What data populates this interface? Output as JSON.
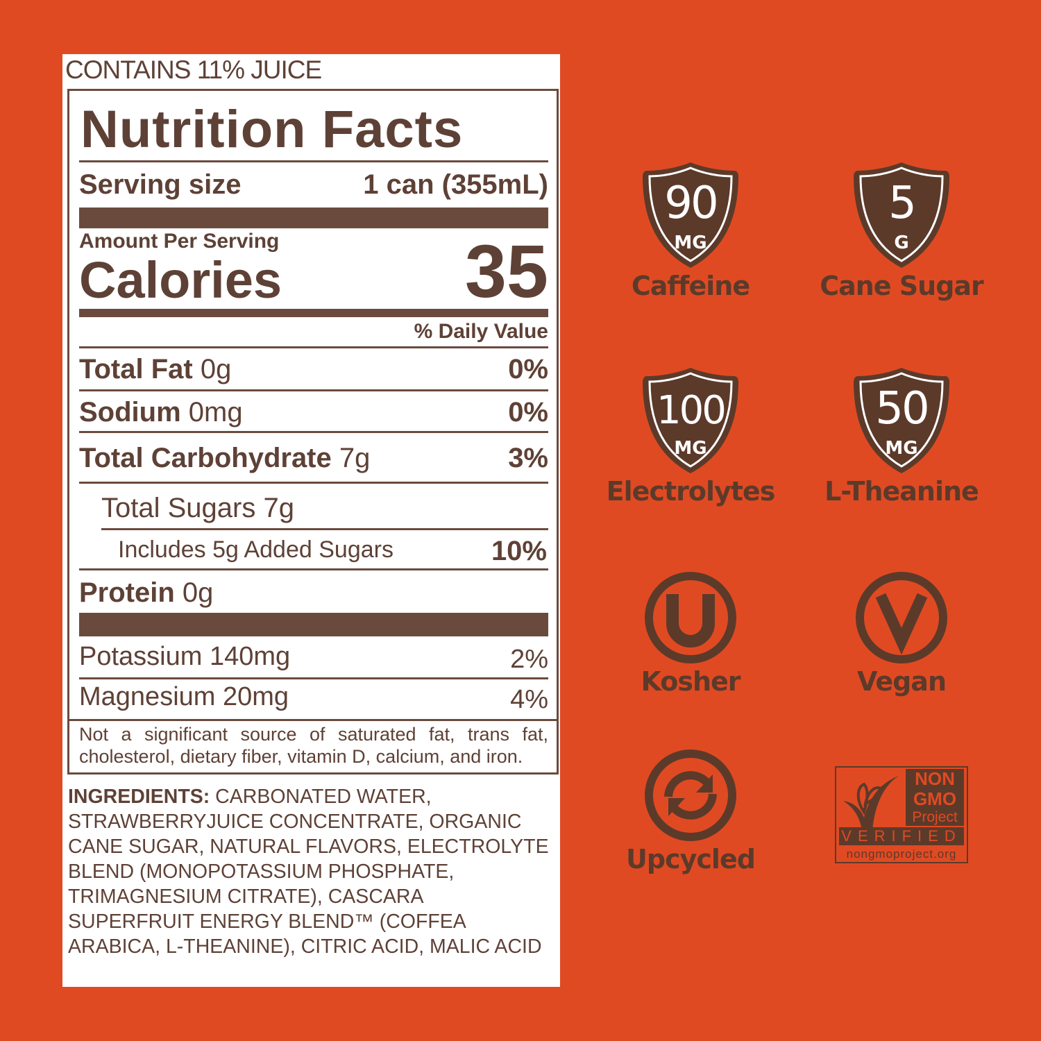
{
  "label": {
    "juice": "CONTAINS 11% JUICE",
    "title": "Nutrition Facts",
    "serving_label": "Serving size",
    "serving_value": "1 can (355mL)",
    "amount_per_serving": "Amount Per Serving",
    "calories_label": "Calories",
    "calories_value": "35",
    "daily_value_header": "% Daily Value",
    "rows": [
      {
        "name": "Total Fat",
        "amount": "0g",
        "dv": "0%"
      },
      {
        "name": "Sodium",
        "amount": "0mg",
        "dv": "0%"
      },
      {
        "name": "Total Carbohydrate",
        "amount": "7g",
        "dv": "3%"
      },
      {
        "name": "Total Sugars 7g",
        "amount": "",
        "dv": ""
      },
      {
        "name": "Includes 5g Added Sugars",
        "amount": "",
        "dv": "10%"
      },
      {
        "name": "Protein",
        "amount": "0g",
        "dv": ""
      }
    ],
    "minerals": [
      {
        "name": "Potassium 140mg",
        "dv": "2%"
      },
      {
        "name": "Magnesium 20mg",
        "dv": "4%"
      }
    ],
    "footnote_line1": "Not a significant source of saturated fat, trans fat,",
    "footnote_line2": "cholesterol, dietary fiber, vitamin D, calcium, and iron.",
    "ingredients_label": "INGREDIENTS:",
    "ingredients": " CARBONATED WATER, STRAWBERRYJUICE CONCENTRATE, ORGANIC CANE SUGAR, NATURAL FLAVORS, ELECTROLYTE BLEND (MONOPOTASSIUM PHOSPHATE, TRIMAGNESIUM CITRATE), CASCARA SUPERFRUIT ENERGY BLEND™ (COFFEA ARABICA, L-THEANINE), CITRIC ACID, MALIC ACID"
  },
  "badges": [
    {
      "value": "90",
      "unit": "MG",
      "label": "Caffeine",
      "icon": "shield-icon"
    },
    {
      "value": "5",
      "unit": "G",
      "label": "Cane Sugar",
      "icon": "shield-icon"
    },
    {
      "value": "100",
      "unit": "MG",
      "label": "Electrolytes",
      "icon": "shield-icon"
    },
    {
      "value": "50",
      "unit": "MG",
      "label": "L-Theanine",
      "icon": "shield-icon"
    },
    {
      "label": "Kosher",
      "icon": "kosher-u-icon"
    },
    {
      "label": "Vegan",
      "icon": "vegan-v-icon"
    },
    {
      "label": "Upcycled",
      "icon": "upcycle-arrows-icon"
    }
  ],
  "nongmo": {
    "line1": "NON",
    "line2": "GMO",
    "line3": "Project",
    "verified": "VERIFIED",
    "url": "nongmoproject.org"
  },
  "colors": {
    "background": "#E04A22",
    "brown": "#5C3A2A",
    "label_text": "#5E4136"
  }
}
